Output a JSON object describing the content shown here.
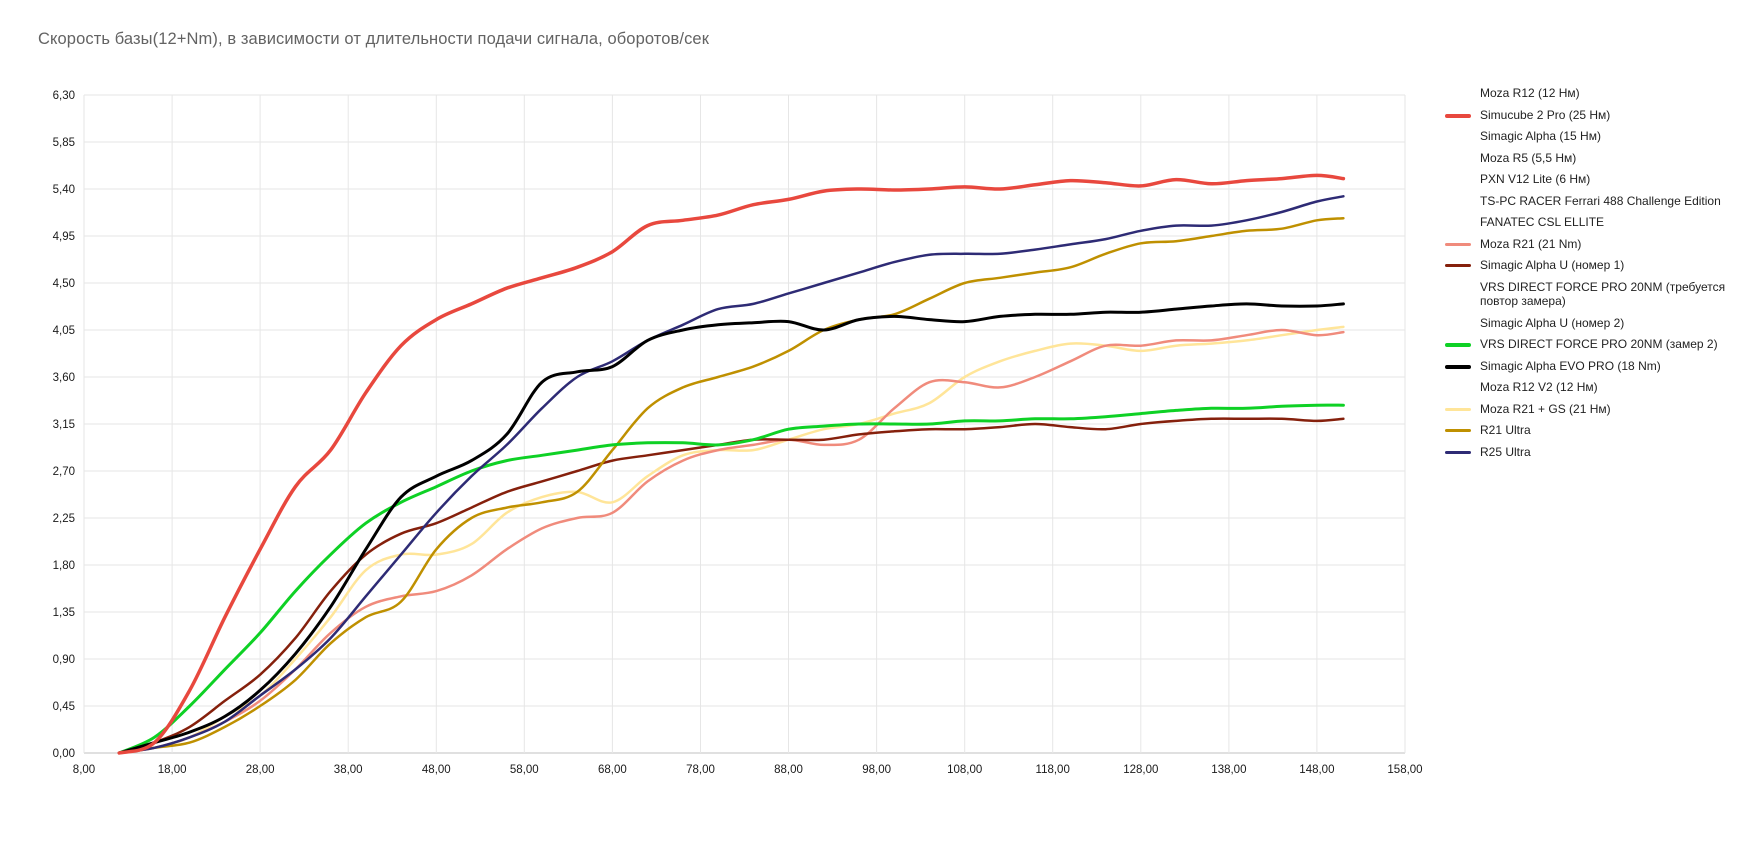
{
  "page": {
    "background": "#ffffff"
  },
  "chart_data": {
    "type": "line",
    "title": "Скорость базы(12+Nm), в зависимости от длительности подачи сигнала, оборотов/сек",
    "xlabel": "",
    "ylabel": "",
    "xlim": [
      8,
      158
    ],
    "ylim": [
      0,
      6.3
    ],
    "grid": true,
    "legend_position": "right",
    "colors": {
      "grid": "#e6e6e6",
      "axis": "#c2c2c2",
      "title": "#636363",
      "tick_label": "#1a1a1a",
      "legend_text": "#222222",
      "background": "#ffffff"
    },
    "x_ticks": [
      8,
      18,
      28,
      38,
      48,
      58,
      68,
      78,
      88,
      98,
      108,
      118,
      128,
      138,
      148,
      158
    ],
    "x_tick_labels": [
      "8,00",
      "18,00",
      "28,00",
      "38,00",
      "48,00",
      "58,00",
      "68,00",
      "78,00",
      "88,00",
      "98,00",
      "108,00",
      "118,00",
      "128,00",
      "138,00",
      "148,00",
      "158,00"
    ],
    "y_ticks": [
      0,
      0.45,
      0.9,
      1.35,
      1.8,
      2.25,
      2.7,
      3.15,
      3.6,
      4.05,
      4.5,
      4.95,
      5.4,
      5.85,
      6.3
    ],
    "y_tick_labels": [
      "0,00",
      "0,45",
      "0,90",
      "1,35",
      "1,80",
      "2,25",
      "2,70",
      "3,15",
      "3,60",
      "4,05",
      "4,50",
      "4,95",
      "5,40",
      "5,85",
      "6,30"
    ],
    "x": [
      12,
      16,
      20,
      24,
      28,
      32,
      36,
      40,
      44,
      48,
      52,
      56,
      60,
      64,
      68,
      72,
      76,
      80,
      84,
      88,
      92,
      96,
      100,
      104,
      108,
      112,
      116,
      120,
      124,
      128,
      132,
      136,
      140,
      144,
      148,
      151
    ],
    "series": [
      {
        "name": "Moza R21 + GS  (21 Нм)",
        "color": "#ffe599",
        "width": 2.5,
        "values": [
          0.0,
          0.05,
          0.15,
          0.35,
          0.55,
          0.9,
          1.3,
          1.75,
          1.9,
          1.9,
          2.0,
          2.3,
          2.45,
          2.5,
          2.4,
          2.65,
          2.85,
          2.9,
          2.9,
          3.0,
          3.1,
          3.15,
          3.25,
          3.35,
          3.6,
          3.75,
          3.85,
          3.92,
          3.9,
          3.85,
          3.9,
          3.92,
          3.95,
          4.0,
          4.05,
          4.08
        ]
      },
      {
        "name": "Moza R21 (21 Nm)",
        "color": "#f08b7c",
        "width": 2.5,
        "values": [
          0.0,
          0.05,
          0.15,
          0.3,
          0.5,
          0.8,
          1.15,
          1.4,
          1.5,
          1.55,
          1.7,
          1.95,
          2.15,
          2.25,
          2.3,
          2.6,
          2.8,
          2.9,
          2.95,
          3.0,
          2.95,
          3.0,
          3.3,
          3.55,
          3.55,
          3.5,
          3.6,
          3.75,
          3.9,
          3.9,
          3.95,
          3.95,
          4.0,
          4.05,
          4.0,
          4.03
        ]
      },
      {
        "name": "Simagic Alpha U (номер 1)",
        "color": "#85200c",
        "width": 2.5,
        "values": [
          0.0,
          0.1,
          0.25,
          0.5,
          0.75,
          1.1,
          1.55,
          1.9,
          2.1,
          2.2,
          2.35,
          2.5,
          2.6,
          2.7,
          2.8,
          2.85,
          2.9,
          2.95,
          3.0,
          3.0,
          3.0,
          3.05,
          3.08,
          3.1,
          3.1,
          3.12,
          3.15,
          3.12,
          3.1,
          3.15,
          3.18,
          3.2,
          3.2,
          3.2,
          3.18,
          3.2
        ]
      },
      {
        "name": "R21 Ultra",
        "color": "#bf9000",
        "width": 2.5,
        "values": [
          0.0,
          0.05,
          0.1,
          0.25,
          0.45,
          0.7,
          1.05,
          1.3,
          1.45,
          1.95,
          2.25,
          2.35,
          2.4,
          2.5,
          2.9,
          3.3,
          3.5,
          3.6,
          3.7,
          3.85,
          4.05,
          4.15,
          4.2,
          4.35,
          4.5,
          4.55,
          4.6,
          4.65,
          4.78,
          4.88,
          4.9,
          4.95,
          5.0,
          5.02,
          5.1,
          5.12
        ]
      },
      {
        "name": "VRS DIRECT FORCE PRO 20NM (замер 2)",
        "color": "#0ed125",
        "width": 3,
        "values": [
          0.0,
          0.15,
          0.45,
          0.8,
          1.15,
          1.55,
          1.9,
          2.2,
          2.4,
          2.55,
          2.7,
          2.8,
          2.85,
          2.9,
          2.95,
          2.97,
          2.97,
          2.95,
          3.0,
          3.1,
          3.13,
          3.15,
          3.15,
          3.15,
          3.18,
          3.18,
          3.2,
          3.2,
          3.22,
          3.25,
          3.28,
          3.3,
          3.3,
          3.32,
          3.33,
          3.33
        ]
      },
      {
        "name": "R25 Ultra",
        "color": "#2e2b75",
        "width": 2.5,
        "values": [
          0.0,
          0.05,
          0.15,
          0.3,
          0.55,
          0.8,
          1.1,
          1.5,
          1.9,
          2.3,
          2.65,
          2.95,
          3.3,
          3.6,
          3.75,
          3.95,
          4.1,
          4.25,
          4.3,
          4.4,
          4.5,
          4.6,
          4.7,
          4.77,
          4.78,
          4.78,
          4.82,
          4.87,
          4.92,
          5.0,
          5.05,
          5.05,
          5.1,
          5.18,
          5.28,
          5.33
        ]
      },
      {
        "name": "Simagic Alpha EVO PRO (18 Nm)",
        "color": "#000000",
        "width": 3,
        "values": [
          0.0,
          0.1,
          0.2,
          0.35,
          0.6,
          0.95,
          1.4,
          1.95,
          2.45,
          2.65,
          2.8,
          3.05,
          3.55,
          3.65,
          3.7,
          3.95,
          4.05,
          4.1,
          4.12,
          4.13,
          4.05,
          4.15,
          4.18,
          4.15,
          4.13,
          4.18,
          4.2,
          4.2,
          4.22,
          4.22,
          4.25,
          4.28,
          4.3,
          4.28,
          4.28,
          4.3
        ]
      },
      {
        "name": "Simucube 2 Pro (25 Нм)",
        "color": "#e8483e",
        "width": 3.5,
        "values": [
          0.0,
          0.1,
          0.6,
          1.3,
          1.95,
          2.55,
          2.9,
          3.45,
          3.9,
          4.15,
          4.3,
          4.45,
          4.55,
          4.65,
          4.8,
          5.05,
          5.1,
          5.15,
          5.25,
          5.3,
          5.38,
          5.4,
          5.39,
          5.4,
          5.42,
          5.4,
          5.44,
          5.48,
          5.46,
          5.43,
          5.49,
          5.45,
          5.48,
          5.5,
          5.53,
          5.5
        ]
      }
    ],
    "legend": [
      {
        "label": "Moza R12 (12 Нм)",
        "color": "#ffffff",
        "thick": false
      },
      {
        "label": "Simucube 2 Pro (25 Нм)",
        "color": "#e8483e",
        "thick": true
      },
      {
        "label": "Simagic Alpha (15 Нм)",
        "color": "#ffffff",
        "thick": false
      },
      {
        "label": "Moza R5 (5,5 Нм)",
        "color": "#ffffff",
        "thick": false
      },
      {
        "label": "PXN V12 Lite (6 Нм)",
        "color": "#ffffff",
        "thick": false
      },
      {
        "label": "TS-PC RACER Ferrari 488 Challenge Edition",
        "color": "#ffffff",
        "thick": false
      },
      {
        "label": "FANATEC CSL ELLITE",
        "color": "#ffffff",
        "thick": false
      },
      {
        "label": "Moza R21 (21 Nm)",
        "color": "#f08b7c",
        "thick": false
      },
      {
        "label": "Simagic Alpha U (номер 1)",
        "color": "#85200c",
        "thick": false
      },
      {
        "label": "VRS DIRECT FORCE PRO 20NM (требуется повтор замера)",
        "color": "#ffffff",
        "thick": false
      },
      {
        "label": "Simagic Alpha U (номер 2)",
        "color": "#ffffff",
        "thick": false
      },
      {
        "label": "VRS DIRECT FORCE PRO 20NM (замер 2)",
        "color": "#0ed125",
        "thick": true
      },
      {
        "label": "Simagic Alpha EVO PRO (18 Nm)",
        "color": "#000000",
        "thick": true
      },
      {
        "label": "Moza R12 V2 (12 Нм)",
        "color": "#ffffff",
        "thick": false
      },
      {
        "label": "Moza R21 + GS  (21 Нм)",
        "color": "#ffe599",
        "thick": false
      },
      {
        "label": "R21 Ultra",
        "color": "#bf9000",
        "thick": false
      },
      {
        "label": "R25 Ultra",
        "color": "#2e2b75",
        "thick": false
      }
    ]
  }
}
